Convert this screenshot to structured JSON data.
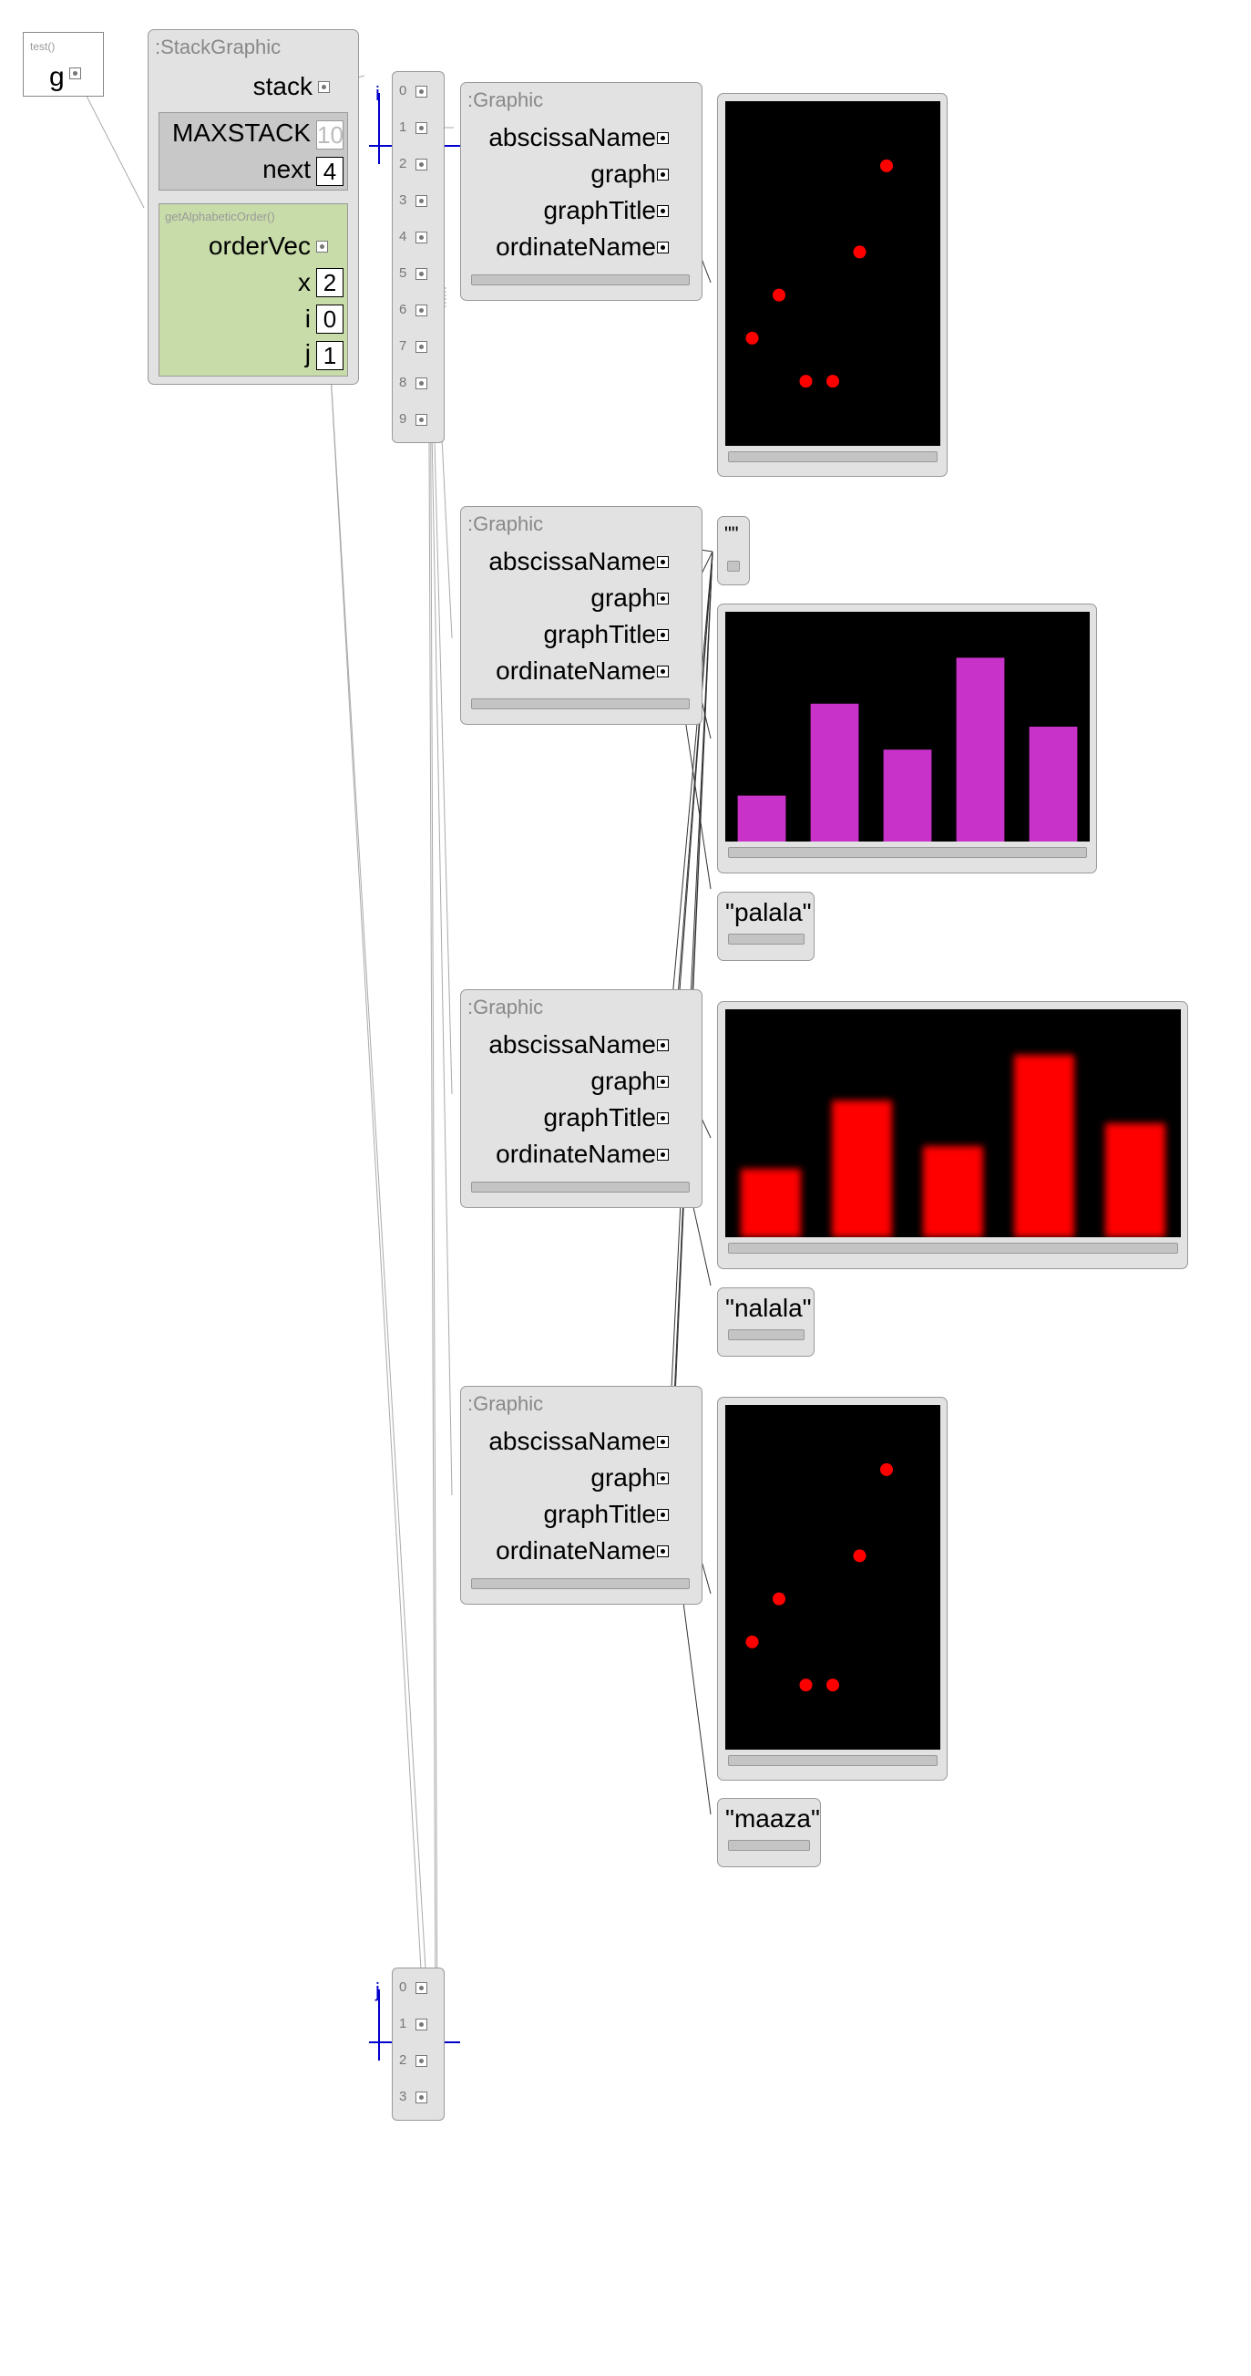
{
  "test_frame": {
    "caption": "test()",
    "var": "g"
  },
  "stack_graphic": {
    "title": ":StackGraphic",
    "stack_label": "stack",
    "maxstack_label": "MAXSTACK",
    "maxstack_value": "10",
    "next_label": "next",
    "next_value": "4"
  },
  "method_frame": {
    "caption": "getAlphabeticOrder()",
    "orderVec_label": "orderVec",
    "x_label": "x",
    "x_value": "2",
    "i_label": "i",
    "i_value": "0",
    "j_label": "j",
    "j_value": "1"
  },
  "stack_array": {
    "indices": [
      "0",
      "1",
      "2",
      "3",
      "4",
      "5",
      "6",
      "7",
      "8",
      "9"
    ],
    "index_marker": "i"
  },
  "order_array": {
    "indices": [
      "0",
      "1",
      "2",
      "3"
    ],
    "index_marker": "j"
  },
  "graphic_fields": [
    "abscissaName",
    "graph",
    "graphTitle",
    "ordinateName"
  ],
  "graphics": [
    {
      "title": ":Graphic"
    },
    {
      "title": ":Graphic"
    },
    {
      "title": ":Graphic"
    },
    {
      "title": ":Graphic"
    }
  ],
  "strings": {
    "empty": "\"\"",
    "palala": "\"palala\"",
    "nalala": "\"nalala\"",
    "maaza": "\"maaza\""
  },
  "colors": {
    "scatter": "#ff0000",
    "bars_magenta": "#c832c8",
    "bars_red": "#ff0000",
    "index_marker": "#0000cc"
  },
  "chart_data": [
    {
      "type": "scatter",
      "points": [
        [
          1,
          2.5
        ],
        [
          2,
          3.5
        ],
        [
          3,
          1.5
        ],
        [
          4,
          1.5
        ],
        [
          5,
          4.5
        ],
        [
          6,
          6.5
        ]
      ],
      "xlim": [
        0,
        8
      ],
      "ylim": [
        0,
        8
      ]
    },
    {
      "type": "bar",
      "values": [
        2,
        6,
        4,
        8,
        5
      ],
      "ylim": [
        0,
        10
      ]
    },
    {
      "type": "bar",
      "values": [
        3,
        6,
        4,
        8,
        5
      ],
      "ylim": [
        0,
        10
      ]
    },
    {
      "type": "scatter",
      "points": [
        [
          1,
          2.5
        ],
        [
          2,
          3.5
        ],
        [
          3,
          1.5
        ],
        [
          4,
          1.5
        ],
        [
          5,
          4.5
        ],
        [
          6,
          6.5
        ]
      ],
      "xlim": [
        0,
        8
      ],
      "ylim": [
        0,
        8
      ]
    }
  ]
}
